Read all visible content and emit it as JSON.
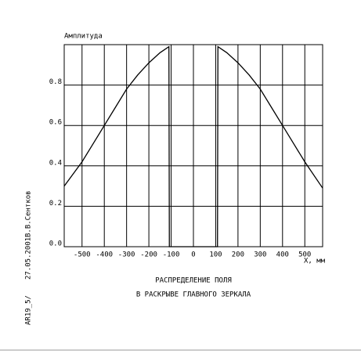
{
  "chart_data": {
    "type": "line",
    "ylabel": "Амплитуда",
    "xlabel": "X, мм",
    "title": [
      "РАСПРЕДЕЛЕНИЕ ПОЛЯ",
      "В РАСКРЫВЕ ГЛАВНОГО ЗЕРКАЛА"
    ],
    "annotations": [
      "AR19_5/",
      "27.05.2001",
      "В.В.Сентков"
    ],
    "x": [
      -580,
      -500,
      -450,
      -400,
      -350,
      -300,
      -250,
      -200,
      -150,
      -110,
      -108,
      108,
      110,
      150,
      200,
      250,
      300,
      350,
      400,
      450,
      500,
      580
    ],
    "series": [
      {
        "name": "Амплитуда",
        "color": "#000000",
        "values": [
          0.3,
          0.42,
          0.51,
          0.6,
          0.69,
          0.78,
          0.85,
          0.91,
          0.96,
          0.99,
          0,
          0,
          0.99,
          0.96,
          0.91,
          0.85,
          0.78,
          0.69,
          0.6,
          0.51,
          0.42,
          0.29
        ]
      }
    ],
    "xlim": [
      -580,
      580
    ],
    "xticks": [
      -500,
      -400,
      -300,
      -200,
      -100,
      0,
      100,
      200,
      300,
      400,
      500
    ],
    "ylim": [
      0,
      1
    ],
    "yticks": [
      {
        "value": 0,
        "label": "0.0"
      },
      0.2,
      0.4,
      0.6,
      0.8
    ],
    "grid": true
  }
}
